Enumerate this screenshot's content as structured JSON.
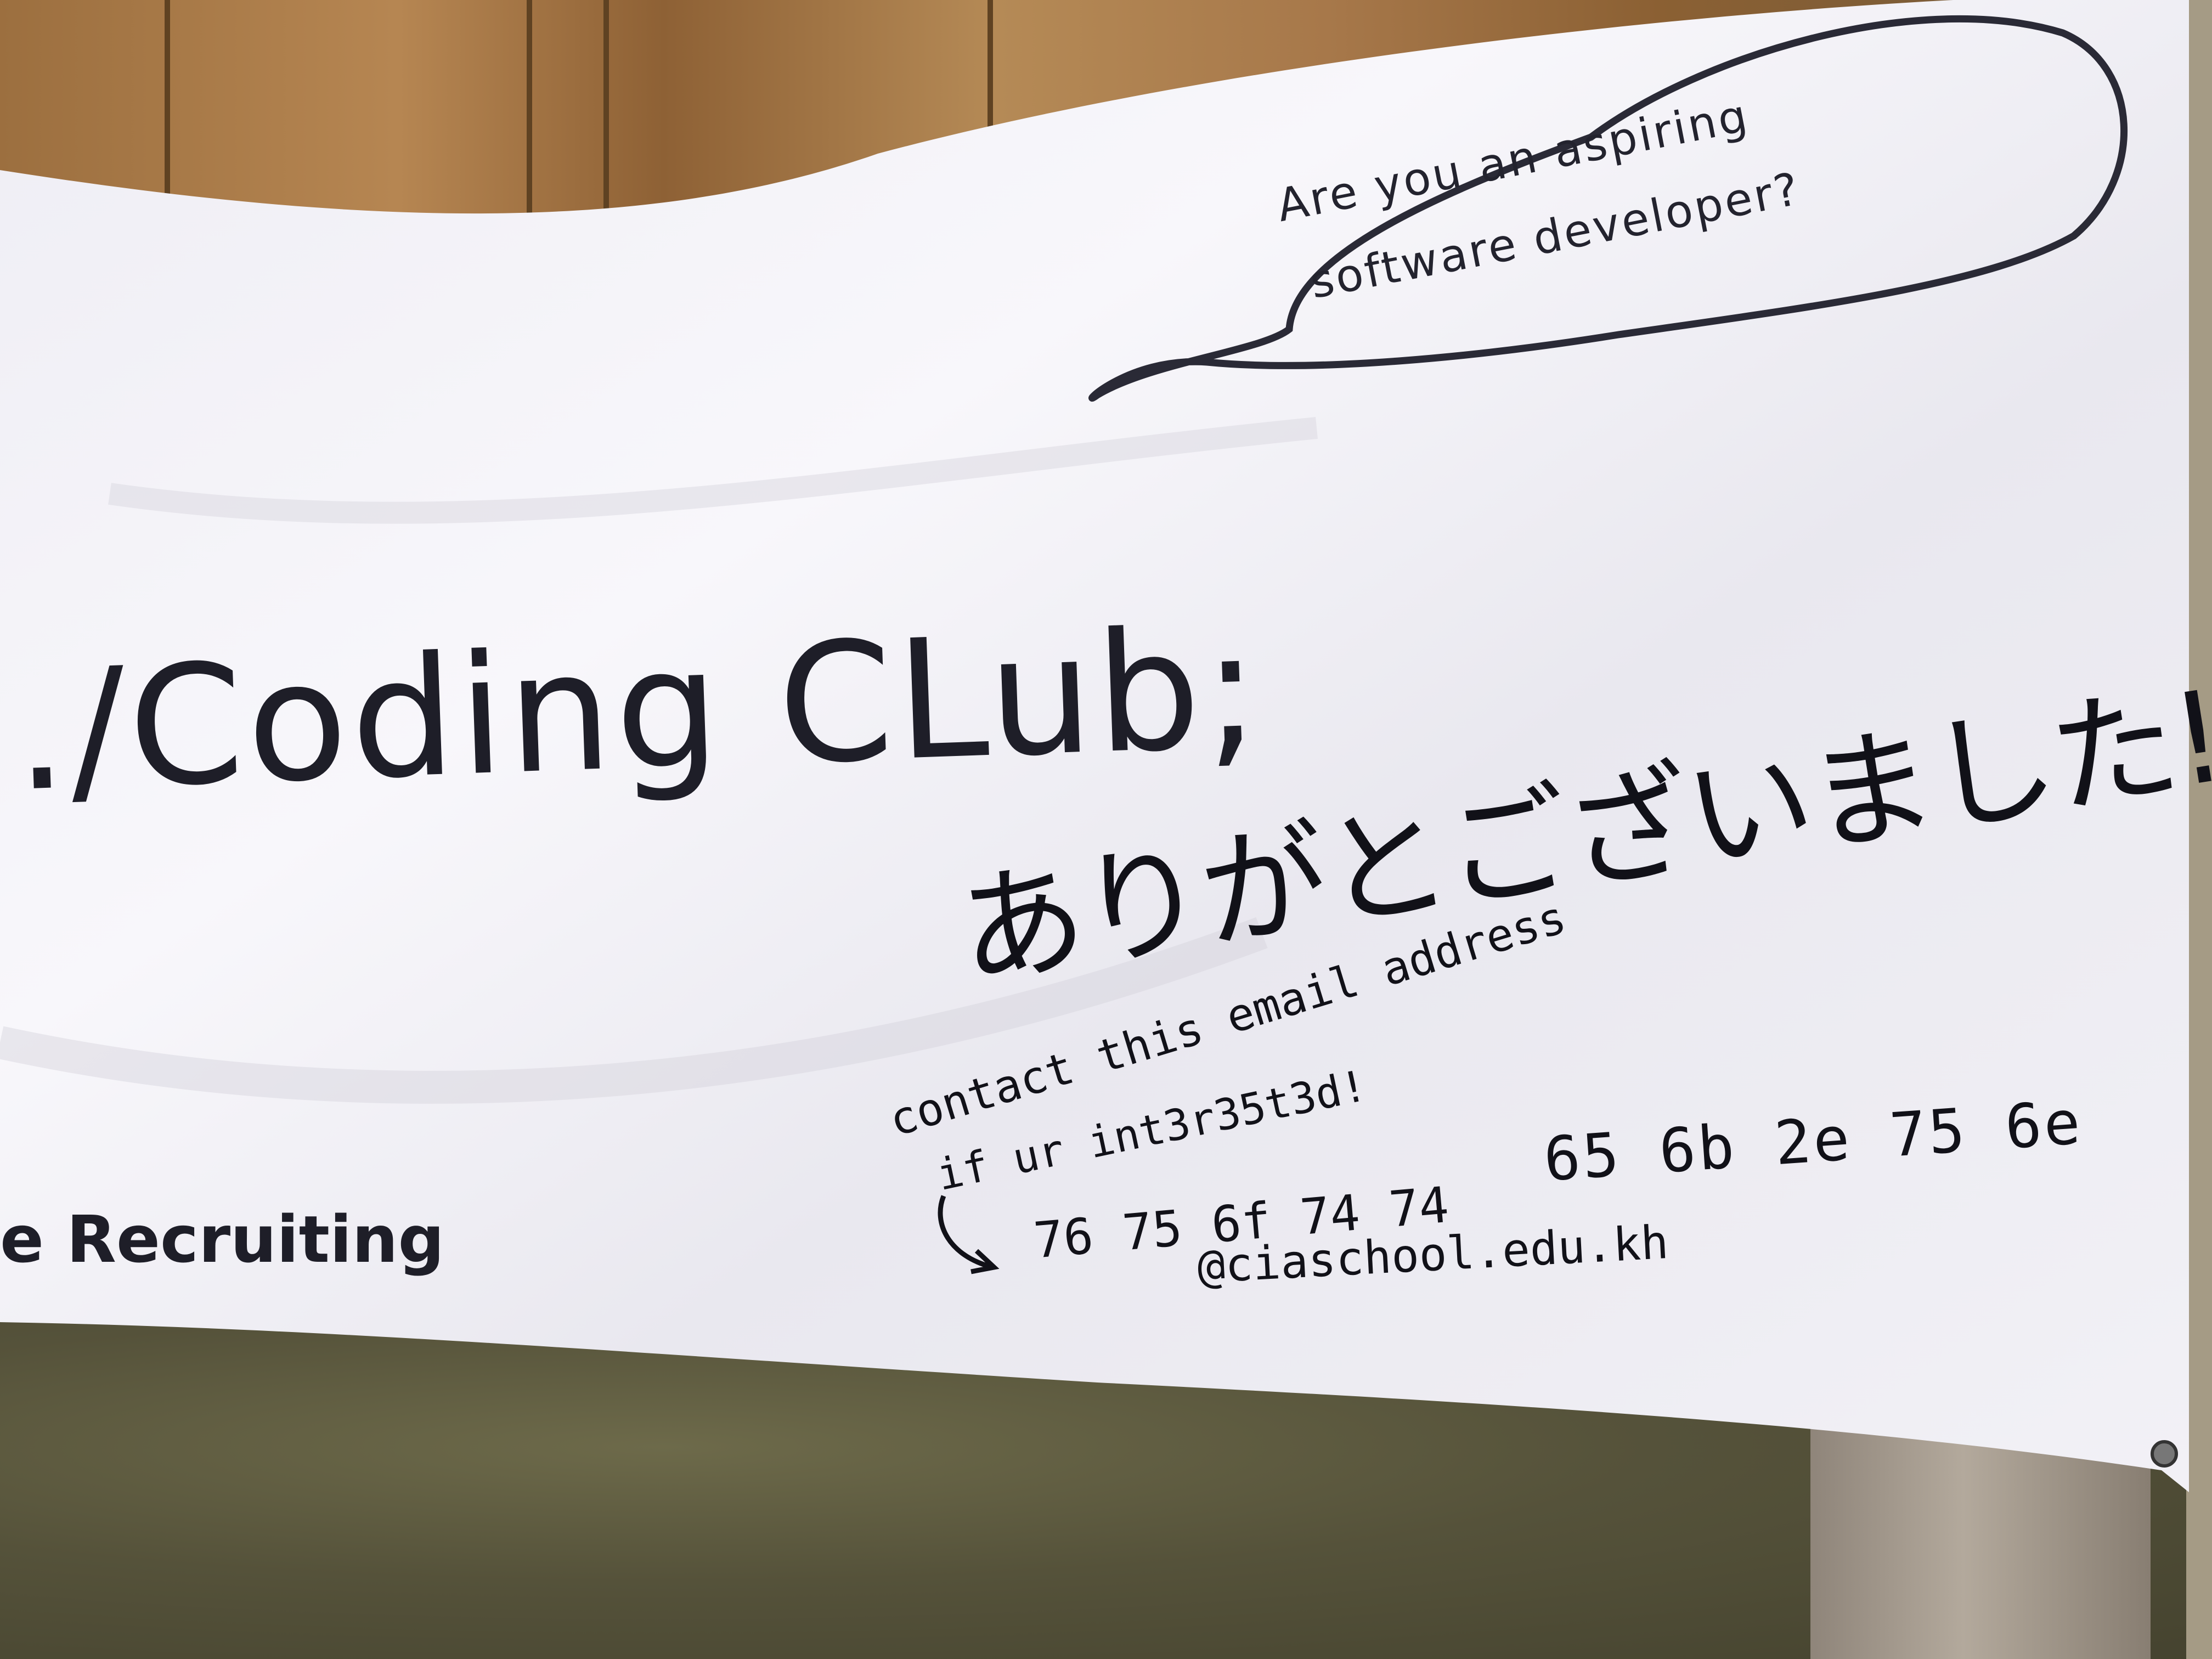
{
  "banner": {
    "cloud_line_1": "Are you an aspiring",
    "cloud_line_2": "software developer?",
    "title": "./Coding CLub;",
    "recruiting": "e Recruiting"
  },
  "handwriting": {
    "thanks": "ありがとございました!",
    "contact_line_1": "contact this email address",
    "contact_line_2": "if ur int3r35t3d!",
    "hex_line_1": "65 6b 2e 75 6e",
    "hex_line_2": "76 75 6f 74 74",
    "domain": "@ciaschool.edu.kh"
  },
  "colors": {
    "banner": "#f4f3f8",
    "ink": "#1e1e28",
    "grass": "#55523a",
    "wall": "#a7784a"
  }
}
